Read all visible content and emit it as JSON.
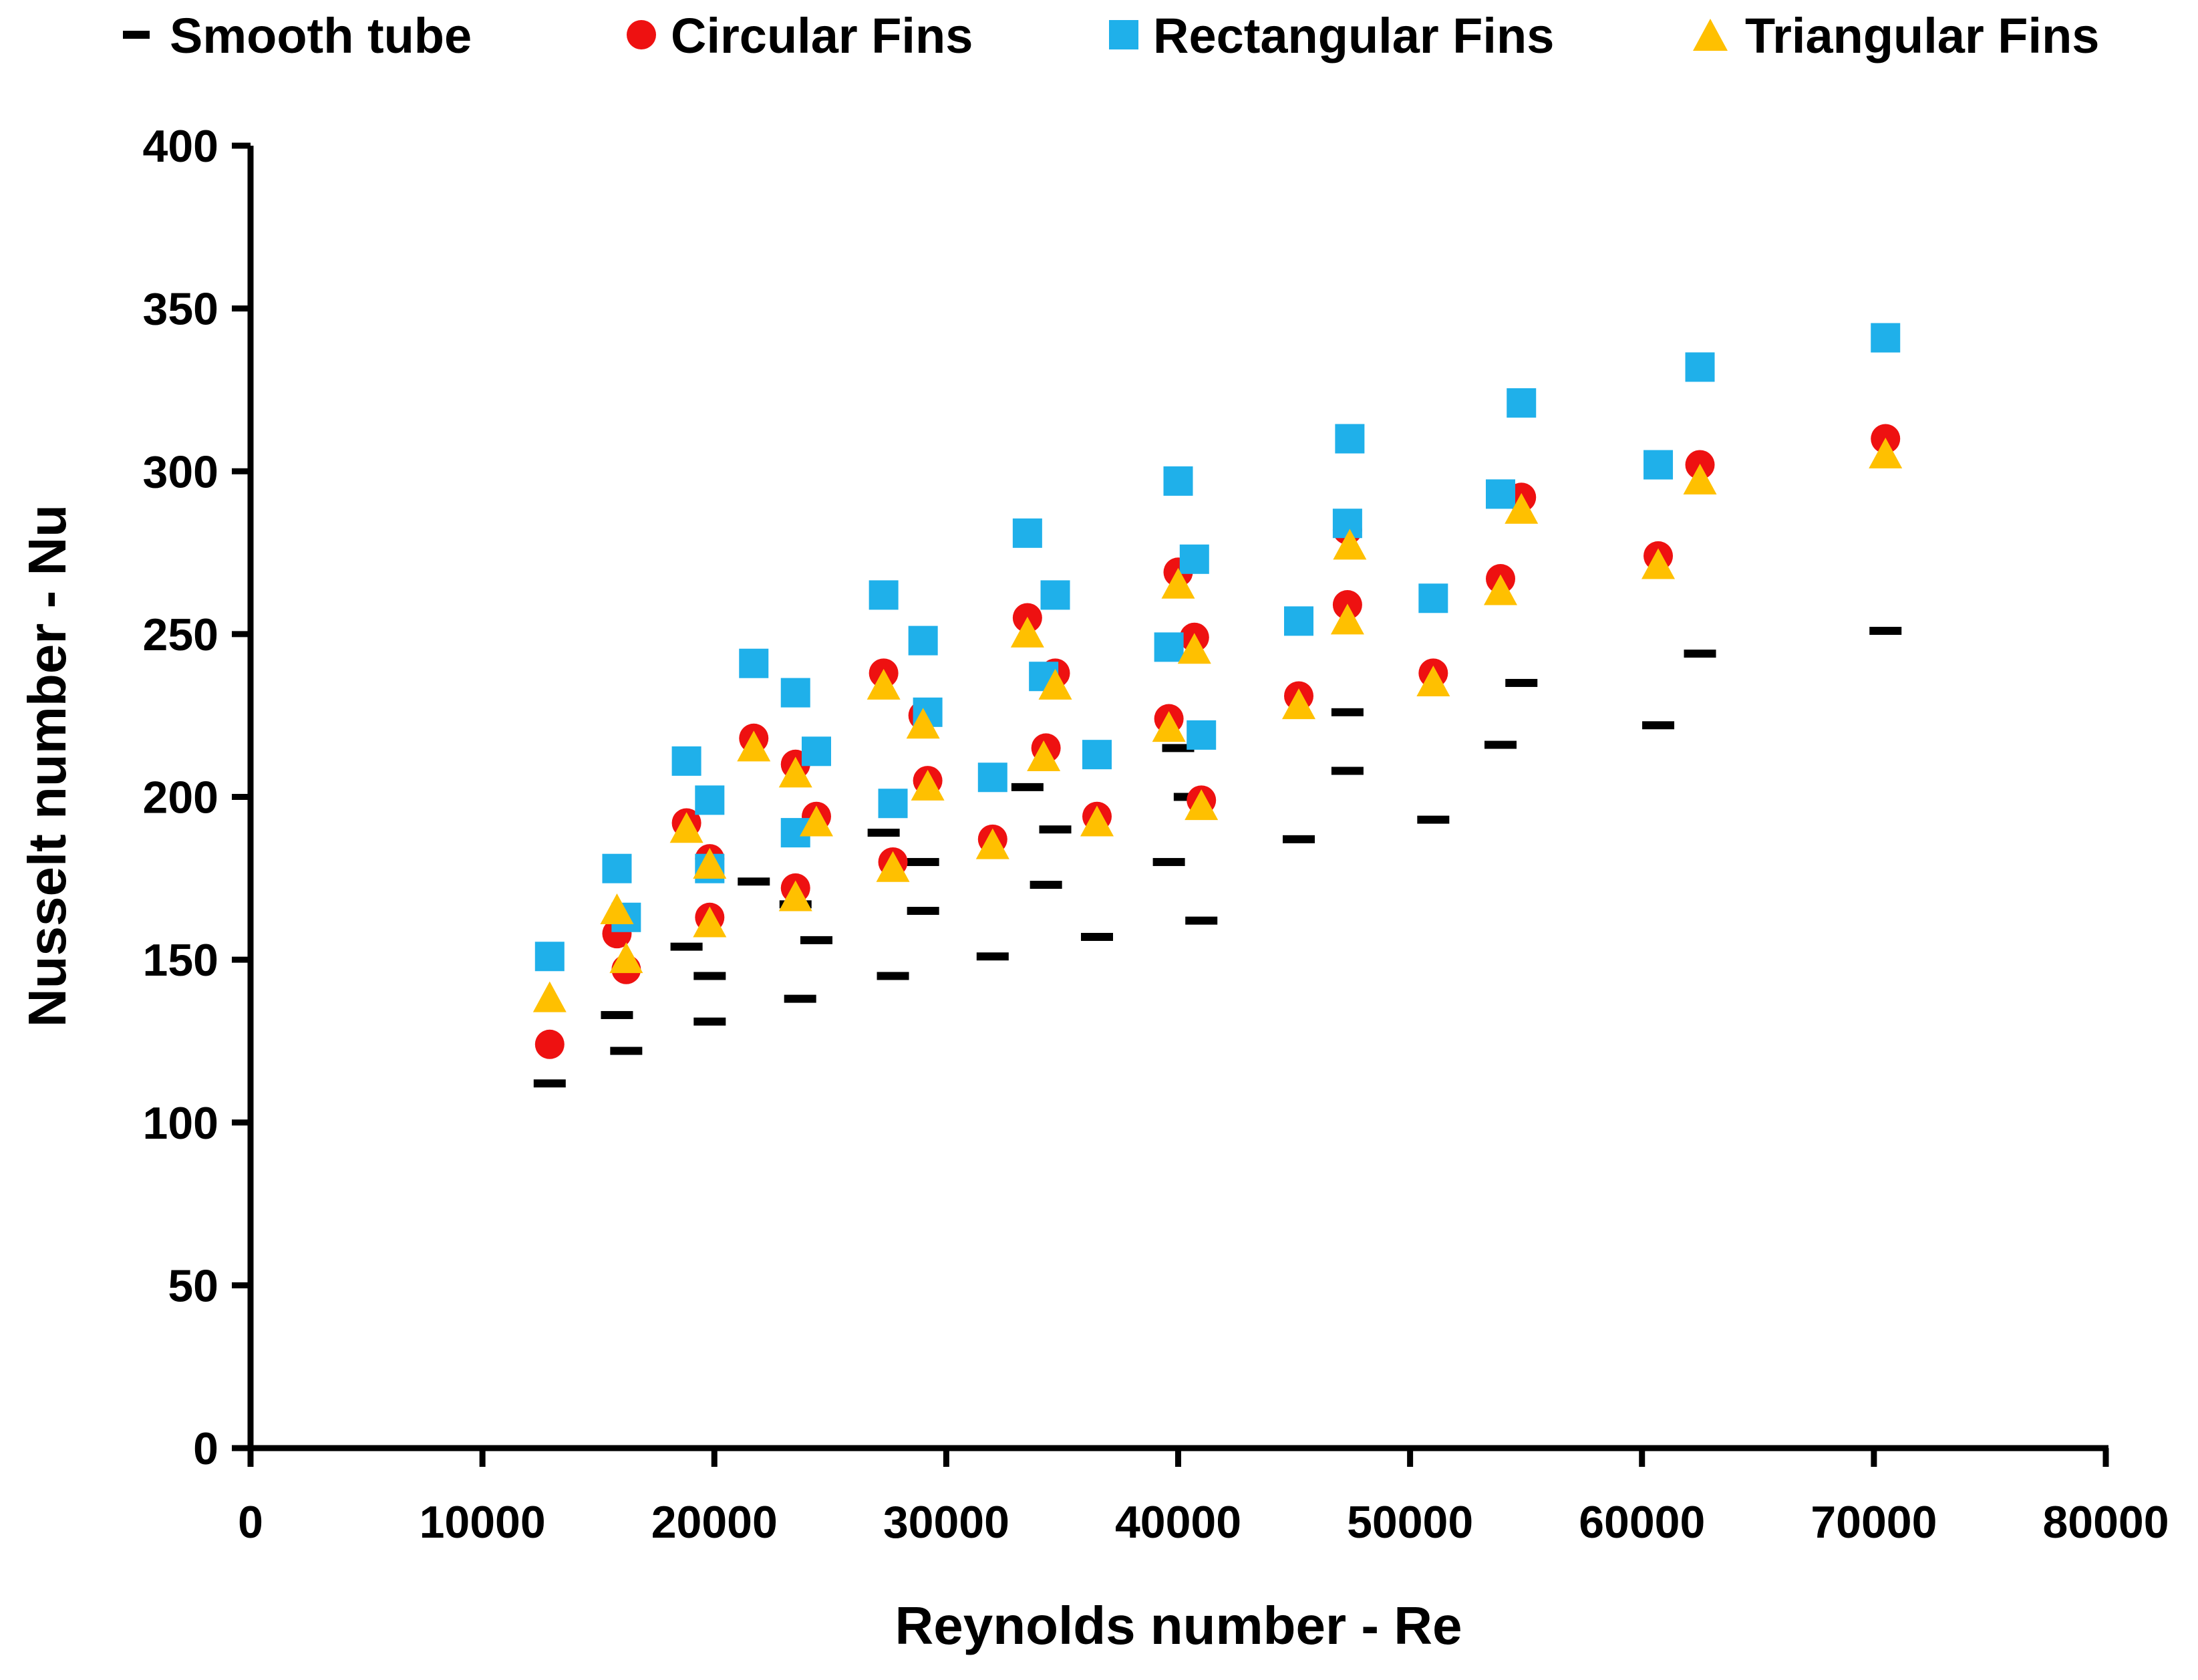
{
  "chart_data": {
    "type": "scatter",
    "title": "",
    "xlabel": "Reynolds number - Re",
    "ylabel": "Nusselt number - Nu",
    "xlim": [
      0,
      80000
    ],
    "ylim": [
      0,
      400
    ],
    "xticks": [
      0,
      10000,
      20000,
      30000,
      40000,
      50000,
      60000,
      70000,
      80000
    ],
    "yticks": [
      0,
      50,
      100,
      150,
      200,
      250,
      300,
      350,
      400
    ],
    "xtick_labels": [
      "0",
      "10000",
      "20000",
      "30000",
      "40000",
      "50000",
      "60000",
      "70000",
      "80000"
    ],
    "ytick_labels": [
      "0",
      "50",
      "100",
      "150",
      "200",
      "250",
      "300",
      "350",
      "400"
    ],
    "grid": false,
    "legend_position": "top",
    "series": [
      {
        "name": "Smooth tube",
        "marker": "dash",
        "color": "#000000",
        "points": [
          [
            12900,
            112
          ],
          [
            15800,
            133
          ],
          [
            16200,
            122
          ],
          [
            18800,
            154
          ],
          [
            19800,
            145
          ],
          [
            19800,
            131
          ],
          [
            21700,
            174
          ],
          [
            23500,
            167
          ],
          [
            23700,
            138
          ],
          [
            24400,
            156
          ],
          [
            27300,
            189
          ],
          [
            27700,
            145
          ],
          [
            29000,
            180
          ],
          [
            29000,
            165
          ],
          [
            32000,
            151
          ],
          [
            33500,
            203
          ],
          [
            34300,
            173
          ],
          [
            34700,
            190
          ],
          [
            36500,
            157
          ],
          [
            39600,
            180
          ],
          [
            40000,
            215
          ],
          [
            40500,
            200
          ],
          [
            41000,
            162
          ],
          [
            45200,
            187
          ],
          [
            47300,
            208
          ],
          [
            47300,
            226
          ],
          [
            51000,
            193
          ],
          [
            53900,
            216
          ],
          [
            54800,
            235
          ],
          [
            60700,
            222
          ],
          [
            62500,
            244
          ],
          [
            70500,
            251
          ]
        ]
      },
      {
        "name": "Circular Fins",
        "marker": "circle",
        "color": "#ee1111",
        "points": [
          [
            12900,
            124
          ],
          [
            15800,
            158
          ],
          [
            16200,
            147
          ],
          [
            18800,
            192
          ],
          [
            19800,
            181
          ],
          [
            19800,
            163
          ],
          [
            21700,
            218
          ],
          [
            23500,
            210
          ],
          [
            23500,
            172
          ],
          [
            24400,
            194
          ],
          [
            27300,
            238
          ],
          [
            27700,
            180
          ],
          [
            29000,
            225
          ],
          [
            29200,
            205
          ],
          [
            32000,
            187
          ],
          [
            33500,
            255
          ],
          [
            34300,
            215
          ],
          [
            34700,
            238
          ],
          [
            36500,
            194
          ],
          [
            39600,
            224
          ],
          [
            40000,
            269
          ],
          [
            40700,
            249
          ],
          [
            41000,
            199
          ],
          [
            45200,
            231
          ],
          [
            47300,
            259
          ],
          [
            47300,
            282
          ],
          [
            51000,
            238
          ],
          [
            53900,
            267
          ],
          [
            54800,
            292
          ],
          [
            60700,
            274
          ],
          [
            62500,
            302
          ],
          [
            70500,
            310
          ]
        ]
      },
      {
        "name": "Rectangular Fins",
        "marker": "square",
        "color": "#1fb0ea",
        "points": [
          [
            12900,
            151
          ],
          [
            15800,
            178
          ],
          [
            16200,
            163
          ],
          [
            18800,
            211
          ],
          [
            19800,
            199
          ],
          [
            19800,
            178
          ],
          [
            21700,
            241
          ],
          [
            23500,
            232
          ],
          [
            23500,
            189
          ],
          [
            24400,
            214
          ],
          [
            27300,
            262
          ],
          [
            27700,
            198
          ],
          [
            29000,
            248
          ],
          [
            29200,
            226
          ],
          [
            32000,
            206
          ],
          [
            33500,
            281
          ],
          [
            34200,
            237
          ],
          [
            34700,
            262
          ],
          [
            36500,
            213
          ],
          [
            39600,
            246
          ],
          [
            40000,
            297
          ],
          [
            40700,
            273
          ],
          [
            41000,
            219
          ],
          [
            45200,
            254
          ],
          [
            47300,
            284
          ],
          [
            47400,
            310
          ],
          [
            51000,
            261
          ],
          [
            53900,
            293
          ],
          [
            54800,
            321
          ],
          [
            60700,
            302
          ],
          [
            62500,
            332
          ],
          [
            70500,
            341
          ]
        ]
      },
      {
        "name": "Triangular Fins",
        "marker": "triangle",
        "color": "#ffc000",
        "points": [
          [
            12900,
            138
          ],
          [
            15800,
            165
          ],
          [
            16200,
            150
          ],
          [
            18800,
            190
          ],
          [
            19800,
            179
          ],
          [
            19800,
            161
          ],
          [
            21700,
            215
          ],
          [
            23500,
            207
          ],
          [
            23500,
            169
          ],
          [
            24400,
            192
          ],
          [
            27300,
            234
          ],
          [
            27700,
            178
          ],
          [
            29000,
            222
          ],
          [
            29200,
            203
          ],
          [
            32000,
            185
          ],
          [
            33500,
            250
          ],
          [
            34200,
            212
          ],
          [
            34700,
            234
          ],
          [
            36500,
            192
          ],
          [
            39600,
            221
          ],
          [
            40000,
            265
          ],
          [
            40700,
            245
          ],
          [
            41000,
            197
          ],
          [
            45200,
            228
          ],
          [
            47300,
            254
          ],
          [
            47400,
            277
          ],
          [
            51000,
            235
          ],
          [
            53900,
            263
          ],
          [
            54800,
            288
          ],
          [
            60700,
            271
          ],
          [
            62500,
            297
          ],
          [
            70500,
            305
          ]
        ]
      }
    ]
  }
}
